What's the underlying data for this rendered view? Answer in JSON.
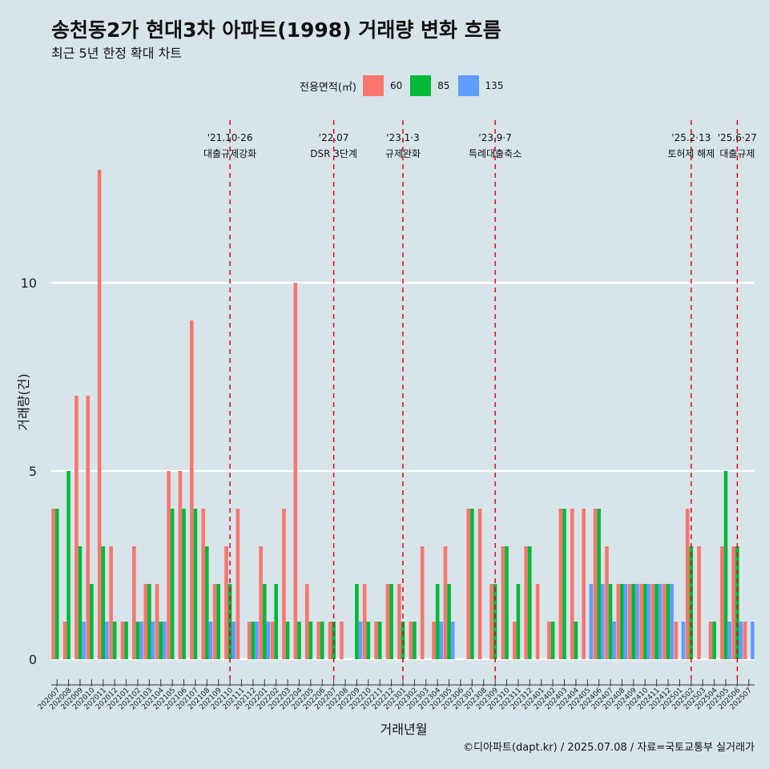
{
  "chart_data": {
    "type": "bar",
    "title": "송천동2가 현대3차 아파트(1998) 거래량 변화 흐름",
    "subtitle": "최근 5년 한정 확대 차트",
    "xlabel": "거래년월",
    "ylabel": "거래량(건)",
    "ylim": [
      0,
      13
    ],
    "y_ticks": [
      0,
      5,
      10
    ],
    "grid": true,
    "legend_position": "top",
    "legend_title": "전용면적(㎡)",
    "caption": "©디아파트(dapt.kr) / 2025.07.08 / 자료=국토교통부 실거래가",
    "categories": [
      "202007",
      "202008",
      "202009",
      "202010",
      "202011",
      "202012",
      "202101",
      "202102",
      "202103",
      "202104",
      "202105",
      "202106",
      "202107",
      "202108",
      "202109",
      "202110",
      "202111",
      "202112",
      "202201",
      "202202",
      "202203",
      "202204",
      "202205",
      "202206",
      "202207",
      "202208",
      "202209",
      "202210",
      "202211",
      "202212",
      "202301",
      "202302",
      "202303",
      "202304",
      "202305",
      "202306",
      "202307",
      "202308",
      "202309",
      "202310",
      "202311",
      "202312",
      "202401",
      "202402",
      "202403",
      "202404",
      "202405",
      "202406",
      "202407",
      "202408",
      "202409",
      "202410",
      "202411",
      "202412",
      "202501",
      "202502",
      "202503",
      "202504",
      "202505",
      "202506",
      "202507"
    ],
    "series": [
      {
        "name": "60",
        "color": "#f8766d",
        "values": [
          4,
          1,
          7,
          7,
          13,
          3,
          1,
          3,
          2,
          2,
          5,
          5,
          9,
          4,
          2,
          3,
          4,
          1,
          3,
          1,
          4,
          10,
          2,
          1,
          1,
          1,
          0,
          2,
          1,
          2,
          2,
          1,
          3,
          1,
          3,
          0,
          4,
          4,
          2,
          3,
          1,
          3,
          2,
          1,
          4,
          4,
          4,
          4,
          3,
          2,
          2,
          2,
          2,
          2,
          1,
          4,
          3,
          1,
          3,
          3,
          1
        ]
      },
      {
        "name": "85",
        "color": "#00ba38",
        "values": [
          4,
          5,
          3,
          2,
          3,
          1,
          1,
          1,
          2,
          1,
          4,
          4,
          4,
          3,
          2,
          2,
          0,
          1,
          2,
          2,
          1,
          1,
          1,
          1,
          1,
          0,
          2,
          1,
          1,
          2,
          1,
          1,
          0,
          2,
          2,
          0,
          4,
          0,
          2,
          3,
          2,
          3,
          0,
          1,
          4,
          1,
          0,
          4,
          2,
          2,
          2,
          2,
          2,
          2,
          0,
          3,
          0,
          1,
          5,
          3,
          0
        ]
      },
      {
        "name": "135",
        "color": "#619cff",
        "values": [
          0,
          0,
          1,
          0,
          1,
          0,
          0,
          1,
          1,
          1,
          0,
          0,
          0,
          1,
          0,
          1,
          0,
          1,
          1,
          0,
          0,
          0,
          0,
          0,
          0,
          0,
          1,
          0,
          0,
          0,
          0,
          0,
          0,
          1,
          1,
          0,
          0,
          0,
          0,
          0,
          0,
          0,
          0,
          0,
          0,
          0,
          2,
          2,
          1,
          2,
          2,
          2,
          2,
          2,
          1,
          0,
          0,
          0,
          1,
          1,
          1
        ]
      }
    ],
    "annotations": [
      {
        "date_line1": "'21.10·26",
        "date_line2": "대출규제강화",
        "at": "202110"
      },
      {
        "date_line1": "'22.07",
        "date_line2": "DSR 3단계",
        "at": "202207"
      },
      {
        "date_line1": "'23.1·3",
        "date_line2": "규제완화",
        "at": "202301"
      },
      {
        "date_line1": "'23.9·7",
        "date_line2": "특례대출축소",
        "at": "202309"
      },
      {
        "date_line1": "'25.2·13",
        "date_line2": "토허제 해제",
        "at": "202502"
      },
      {
        "date_line1": "'25.6·27",
        "date_line2": "대출규제",
        "at": "202506"
      }
    ],
    "colors": {
      "background": "#d7e4ea",
      "grid": "#ffffff",
      "vline": "#e8001c"
    }
  }
}
